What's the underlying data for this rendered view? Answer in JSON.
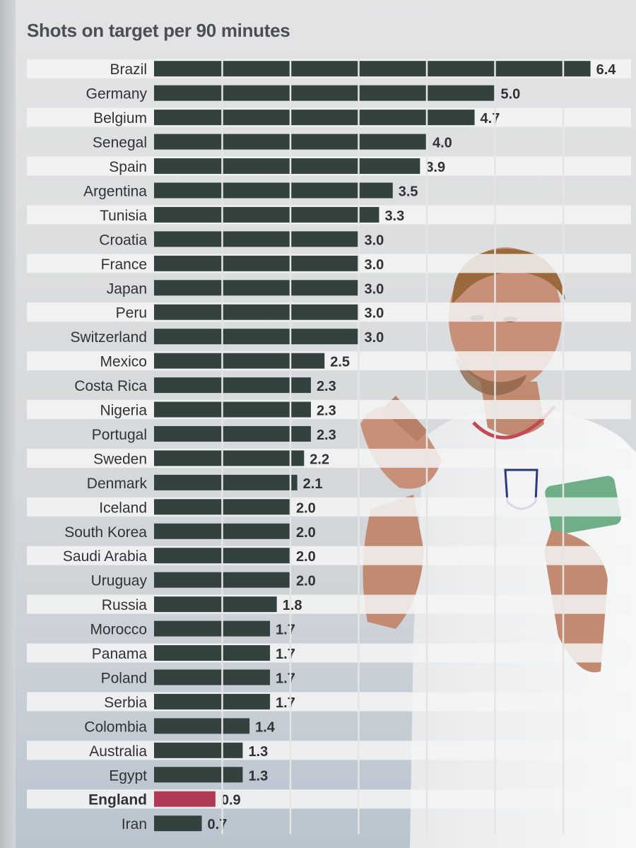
{
  "chart_data": {
    "type": "bar",
    "orientation": "horizontal",
    "title": "Shots on target per 90 minutes",
    "categories": [
      "Brazil",
      "Germany",
      "Belgium",
      "Senegal",
      "Spain",
      "Argentina",
      "Tunisia",
      "Croatia",
      "France",
      "Japan",
      "Peru",
      "Switzerland",
      "Mexico",
      "Costa Rica",
      "Nigeria",
      "Portugal",
      "Sweden",
      "Denmark",
      "Iceland",
      "South Korea",
      "Saudi Arabia",
      "Uruguay",
      "Russia",
      "Morocco",
      "Panama",
      "Poland",
      "Serbia",
      "Colombia",
      "Australia",
      "Egypt",
      "England",
      "Iran"
    ],
    "values": [
      6.4,
      5.0,
      4.7,
      4.0,
      3.9,
      3.5,
      3.3,
      3.0,
      3.0,
      3.0,
      3.0,
      3.0,
      2.5,
      2.3,
      2.3,
      2.3,
      2.2,
      2.1,
      2.0,
      2.0,
      2.0,
      2.0,
      1.8,
      1.7,
      1.7,
      1.7,
      1.7,
      1.4,
      1.3,
      1.3,
      0.9,
      0.7
    ],
    "value_labels": [
      "6.4",
      "5.0",
      "4.7",
      "4.0",
      "3.9",
      "3.5",
      "3.3",
      "3.0",
      "3.0",
      "3.0",
      "3.0",
      "3.0",
      "2.5",
      "2.3",
      "2.3",
      "2.3",
      "2.2",
      "2.1",
      "2.0",
      "2.0",
      "2.0",
      "2.0",
      "1.8",
      "1.7",
      "1.7",
      "1.7",
      "1.7",
      "1.4",
      "1.3",
      "1.3",
      "0.9",
      "0.7"
    ],
    "highlight_category": "England",
    "xlim": [
      0,
      7
    ],
    "tick_interval": 1,
    "grid": true,
    "legend": "none",
    "colors": {
      "bar": "#34423f",
      "highlight": "#b03a55",
      "label": "#2f3336",
      "stripe": "#f4f5f5"
    }
  },
  "decoration": {
    "photo_icon": "football-player-applauding-photo",
    "jersey_colors": {
      "shirt": "#f1f2f3",
      "skin": "#c89178",
      "hair": "#9b6a3c",
      "armband": "#6fae86"
    }
  }
}
